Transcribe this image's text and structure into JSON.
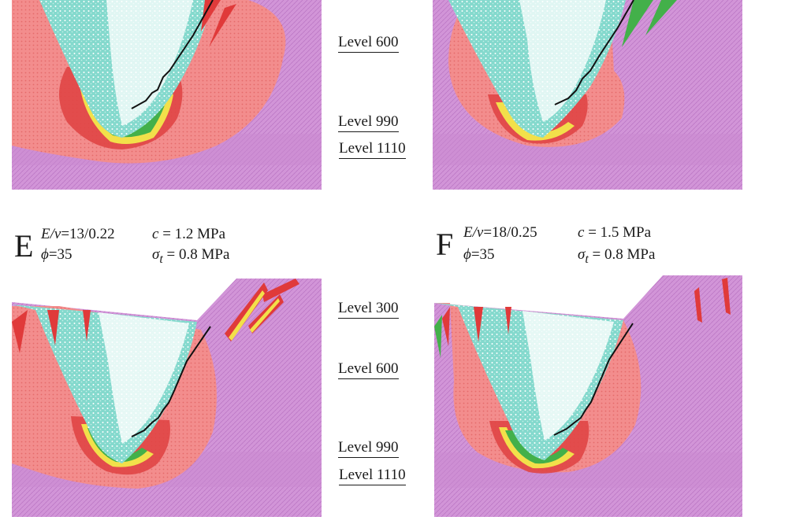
{
  "levels_top": [
    "Level 600",
    "Level 990",
    "Level 1110"
  ],
  "levels_bottom": [
    "Level 300",
    "Level 600",
    "Level 990",
    "Level 1110"
  ],
  "panels": {
    "E": {
      "letter": "E",
      "ev_prefix": "E/",
      "ev_greek": "ν",
      "ev_value": "=13/0.22",
      "c_symbol": "c",
      "c_value": " = 1.2 MPa",
      "phi_symbol": "ϕ",
      "phi_value": "=35",
      "sigma_symbol": "σ",
      "sigma_sub": "t",
      "sigma_value": " = 0.8 MPa"
    },
    "F": {
      "letter": "F",
      "ev_prefix": "E/",
      "ev_greek": "ν",
      "ev_value": "=18/0.25",
      "c_symbol": "c",
      "c_value": " = 1.5 MPa",
      "phi_symbol": "ϕ",
      "phi_value": "=35",
      "sigma_symbol": "σ",
      "sigma_sub": "t",
      "sigma_value": " = 0.8 MPa"
    }
  },
  "colors": {
    "rock": "#cf8fd6",
    "disturbed_zone": "#f08282",
    "intense_zone": "#e03a3a",
    "yield_yellow": "#f2e04a",
    "yield_green": "#43b04a",
    "caved_zone": "#7fd8cc",
    "void": "#ffffff",
    "trace_line": "#111111"
  }
}
